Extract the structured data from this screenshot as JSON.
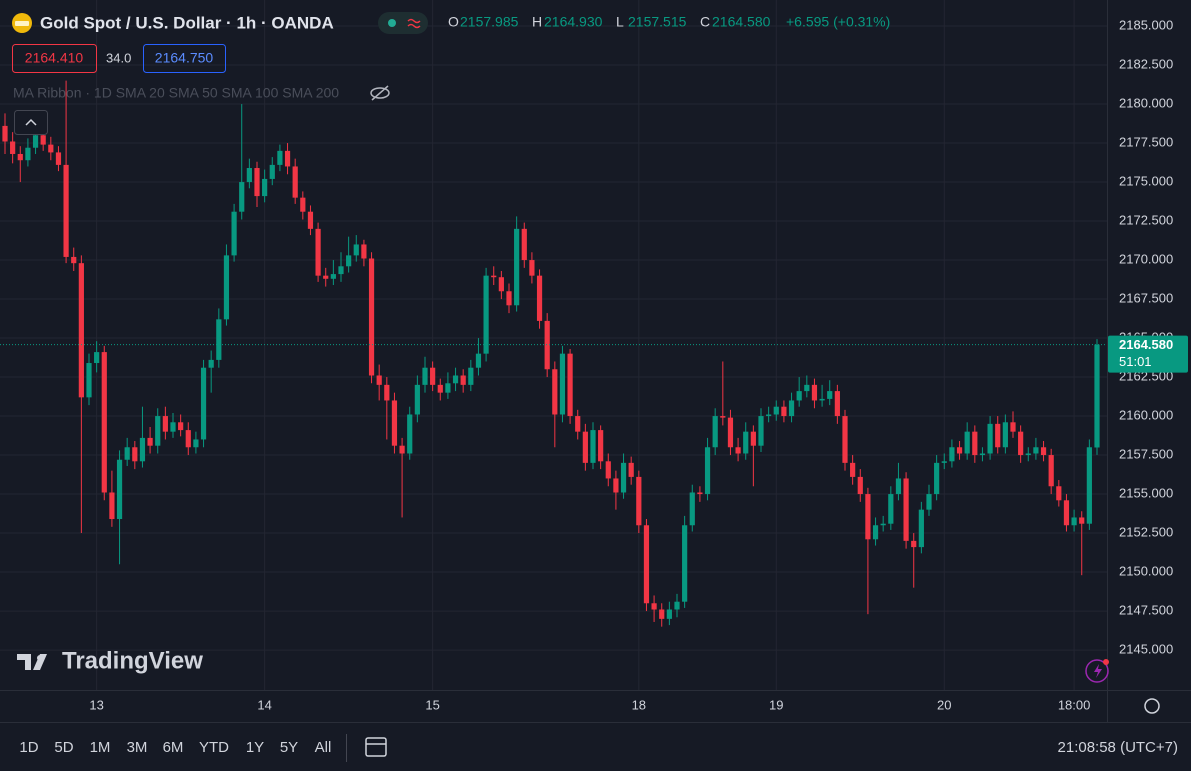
{
  "header": {
    "symbol": "Gold Spot / U.S. Dollar · 1h · OANDA",
    "ohlc_labels": [
      "O",
      "H",
      "L",
      "C"
    ],
    "ohlc_values": [
      "2157.985",
      "2164.930",
      "2157.515",
      "2164.580"
    ],
    "change": "+6.595 (+0.31%)",
    "bid": "2164.410",
    "spread": "34.0",
    "ask": "2164.750",
    "indicator": "MA Ribbon · 1D SMA 20 SMA 50 SMA 100 SMA 200"
  },
  "chart_data": {
    "type": "candlestick",
    "up_color": "#089981",
    "down_color": "#f23645",
    "grid": true,
    "ylim": [
      2142.44,
      2186.67
    ],
    "yticks": [
      {
        "value": 2145,
        "label": "2145.000"
      },
      {
        "value": 2147.5,
        "label": "2147.500"
      },
      {
        "value": 2150,
        "label": "2150.000"
      },
      {
        "value": 2152.5,
        "label": "2152.500"
      },
      {
        "value": 2155,
        "label": "2155.000"
      },
      {
        "value": 2157.5,
        "label": "2157.500"
      },
      {
        "value": 2160,
        "label": "2160.000"
      },
      {
        "value": 2162.5,
        "label": "2162.500"
      },
      {
        "value": 2165,
        "label": "2165.000"
      },
      {
        "value": 2167.5,
        "label": "2167.500"
      },
      {
        "value": 2170,
        "label": "2170.000"
      },
      {
        "value": 2172.5,
        "label": "2172.500"
      },
      {
        "value": 2175,
        "label": "2175.000"
      },
      {
        "value": 2177.5,
        "label": "2177.500"
      },
      {
        "value": 2180,
        "label": "2180.000"
      },
      {
        "value": 2182.5,
        "label": "2182.500"
      },
      {
        "value": 2185,
        "label": "2185.000"
      }
    ],
    "categories": [
      null,
      null,
      null,
      null,
      null,
      null,
      null,
      null,
      null,
      null,
      null,
      null,
      "13",
      null,
      null,
      null,
      null,
      null,
      null,
      null,
      null,
      null,
      null,
      null,
      null,
      null,
      null,
      null,
      null,
      null,
      null,
      null,
      null,
      null,
      "14",
      null,
      null,
      null,
      null,
      null,
      null,
      null,
      null,
      null,
      null,
      null,
      null,
      null,
      null,
      null,
      null,
      null,
      null,
      null,
      null,
      null,
      "15",
      null,
      null,
      null,
      null,
      null,
      null,
      null,
      null,
      null,
      null,
      null,
      null,
      null,
      null,
      null,
      null,
      null,
      null,
      null,
      null,
      null,
      null,
      null,
      null,
      null,
      null,
      "18",
      null,
      null,
      null,
      null,
      null,
      null,
      null,
      null,
      null,
      null,
      null,
      null,
      null,
      null,
      null,
      null,
      null,
      "19",
      null,
      null,
      null,
      null,
      null,
      null,
      null,
      null,
      null,
      null,
      null,
      null,
      null,
      null,
      null,
      null,
      null,
      null,
      null,
      null,
      null,
      "20",
      null,
      null,
      null,
      null,
      null,
      null,
      null,
      null,
      null,
      null,
      null,
      null,
      null,
      null,
      null,
      null,
      "18:00",
      null,
      null,
      null
    ],
    "open": [
      2178.6,
      2177.6,
      2176.8,
      2176.4,
      2177.2,
      2178.0,
      2177.4,
      2176.9,
      2176.1,
      2170.2,
      2169.8,
      2161.2,
      2163.4,
      2164.1,
      2155.1,
      2153.4,
      2157.2,
      2158.0,
      2157.1,
      2158.6,
      2158.1,
      2160.0,
      2159.0,
      2159.6,
      2159.1,
      2158.0,
      2158.5,
      2163.1,
      2163.6,
      2166.2,
      2170.3,
      2173.1,
      2175.0,
      2175.9,
      2174.1,
      2175.2,
      2176.1,
      2177.0,
      2176.0,
      2174.0,
      2173.1,
      2172.0,
      2169.0,
      2168.8,
      2169.1,
      2169.6,
      2170.3,
      2171.0,
      2170.1,
      2162.6,
      2162.0,
      2161.0,
      2158.1,
      2157.6,
      2160.1,
      2162.0,
      2163.1,
      2162.0,
      2161.5,
      2162.1,
      2162.6,
      2162.0,
      2163.1,
      2164.0,
      2169.0,
      2168.9,
      2168.0,
      2167.1,
      2172.0,
      2170.0,
      2169.0,
      2166.1,
      2163.0,
      2160.1,
      2164.0,
      2160.0,
      2159.0,
      2157.0,
      2159.1,
      2157.1,
      2156.0,
      2155.1,
      2157.0,
      2156.1,
      2153.0,
      2148.0,
      2147.6,
      2147.0,
      2147.6,
      2148.1,
      2153.0,
      2155.1,
      2155.0,
      2158.0,
      2160.0,
      2159.9,
      2158.0,
      2157.6,
      2159.0,
      2158.1,
      2160.0,
      2160.1,
      2160.6,
      2160.0,
      2161.0,
      2161.6,
      2162.0,
      2161.0,
      2161.1,
      2161.6,
      2160.0,
      2157.0,
      2156.1,
      2155.0,
      2152.1,
      2153.0,
      2153.1,
      2155.0,
      2156.0,
      2152.0,
      2151.6,
      2154.0,
      2155.0,
      2157.0,
      2157.1,
      2158.0,
      2157.6,
      2159.0,
      2157.5,
      2157.6,
      2159.5,
      2158.0,
      2159.6,
      2159.0,
      2157.5,
      2157.6,
      2158.0,
      2157.5,
      2155.5,
      2154.6,
      2153.0,
      2153.5,
      2153.1,
      2157.985
    ],
    "high": [
      2179.4,
      2178.2,
      2177.3,
      2177.8,
      2178.6,
      2178.4,
      2177.9,
      2177.3,
      2181.5,
      2170.8,
      2170.3,
      2164.0,
      2164.8,
      2164.5,
      2156.5,
      2157.8,
      2158.6,
      2158.4,
      2160.6,
      2159.3,
      2160.5,
      2160.6,
      2160.2,
      2160.1,
      2159.6,
      2159.0,
      2163.6,
      2164.2,
      2166.9,
      2171.0,
      2173.6,
      2180.0,
      2176.5,
      2176.3,
      2175.8,
      2176.6,
      2177.4,
      2177.5,
      2176.5,
      2174.4,
      2173.5,
      2172.4,
      2169.5,
      2170.0,
      2170.5,
      2171.5,
      2171.6,
      2171.3,
      2170.5,
      2163.3,
      2162.5,
      2161.5,
      2158.6,
      2160.6,
      2162.6,
      2163.8,
      2163.5,
      2162.4,
      2162.8,
      2163.1,
      2163.0,
      2163.6,
      2165.0,
      2169.5,
      2169.6,
      2169.3,
      2168.5,
      2172.8,
      2172.4,
      2170.5,
      2169.4,
      2166.6,
      2163.5,
      2164.5,
      2164.3,
      2160.4,
      2159.5,
      2159.6,
      2159.4,
      2157.6,
      2156.5,
      2157.6,
      2157.4,
      2156.5,
      2153.4,
      2148.5,
      2148.0,
      2148.1,
      2148.6,
      2153.6,
      2155.6,
      2155.5,
      2158.6,
      2160.5,
      2163.5,
      2160.4,
      2158.6,
      2159.6,
      2159.4,
      2160.5,
      2160.6,
      2161.0,
      2161.0,
      2161.5,
      2162.5,
      2162.6,
      2162.4,
      2162.0,
      2162.3,
      2162.0,
      2160.4,
      2157.5,
      2156.6,
      2155.4,
      2153.5,
      2153.6,
      2155.5,
      2157.0,
      2156.4,
      2152.5,
      2154.5,
      2155.6,
      2157.5,
      2157.6,
      2158.5,
      2158.4,
      2159.6,
      2159.4,
      2158.0,
      2160.0,
      2160.0,
      2160.1,
      2160.3,
      2159.4,
      2158.0,
      2158.6,
      2158.4,
      2157.9,
      2155.9,
      2155.0,
      2154.0,
      2153.9,
      2158.5,
      2164.93
    ],
    "low": [
      2176.8,
      2176.2,
      2175.0,
      2176.0,
      2176.8,
      2177.0,
      2176.4,
      2175.7,
      2169.8,
      2169.3,
      2152.5,
      2160.7,
      2162.8,
      2154.6,
      2152.9,
      2150.5,
      2156.8,
      2156.6,
      2156.7,
      2157.6,
      2157.6,
      2158.5,
      2158.6,
      2158.7,
      2157.5,
      2157.6,
      2158.0,
      2161.5,
      2163.1,
      2165.8,
      2169.9,
      2172.6,
      2174.6,
      2173.4,
      2173.7,
      2174.8,
      2175.7,
      2175.5,
      2173.6,
      2172.6,
      2171.6,
      2168.6,
      2168.3,
      2168.4,
      2168.6,
      2169.2,
      2169.9,
      2169.6,
      2162.1,
      2161.0,
      2158.5,
      2157.6,
      2153.5,
      2157.2,
      2159.6,
      2161.5,
      2161.6,
      2161.0,
      2161.1,
      2161.6,
      2161.5,
      2161.6,
      2162.6,
      2163.5,
      2168.4,
      2167.5,
      2166.6,
      2166.7,
      2169.5,
      2168.5,
      2165.6,
      2162.5,
      2158.0,
      2159.6,
      2159.5,
      2158.5,
      2156.5,
      2156.6,
      2156.6,
      2155.5,
      2154.0,
      2154.7,
      2155.6,
      2152.5,
      2147.5,
      2146.8,
      2146.5,
      2146.6,
      2147.1,
      2147.7,
      2152.6,
      2154.5,
      2154.6,
      2157.5,
      2159.4,
      2157.5,
      2157.1,
      2157.2,
      2155.5,
      2157.7,
      2159.6,
      2159.7,
      2159.6,
      2159.6,
      2160.6,
      2161.2,
      2160.5,
      2160.6,
      2160.7,
      2159.5,
      2156.5,
      2155.6,
      2154.5,
      2147.3,
      2151.7,
      2152.6,
      2152.7,
      2154.6,
      2151.5,
      2149.0,
      2151.2,
      2153.6,
      2154.6,
      2156.6,
      2156.7,
      2157.2,
      2157.2,
      2157.0,
      2157.1,
      2157.2,
      2157.6,
      2157.6,
      2158.6,
      2157.0,
      2157.1,
      2157.2,
      2157.1,
      2155.0,
      2154.2,
      2152.6,
      2152.6,
      2149.8,
      2152.7,
      2157.515
    ],
    "close": [
      2177.6,
      2176.8,
      2176.4,
      2177.2,
      2178.0,
      2177.4,
      2176.9,
      2176.1,
      2170.2,
      2169.8,
      2161.2,
      2163.4,
      2164.1,
      2155.1,
      2153.4,
      2157.2,
      2158.0,
      2157.1,
      2158.6,
      2158.1,
      2160.0,
      2159.0,
      2159.6,
      2159.1,
      2158.0,
      2158.5,
      2163.1,
      2163.6,
      2166.2,
      2170.3,
      2173.1,
      2175.0,
      2175.9,
      2174.1,
      2175.2,
      2176.1,
      2177.0,
      2176.0,
      2174.0,
      2173.1,
      2172.0,
      2169.0,
      2168.8,
      2169.1,
      2169.6,
      2170.3,
      2171.0,
      2170.1,
      2162.6,
      2162.0,
      2161.0,
      2158.1,
      2157.6,
      2160.1,
      2162.0,
      2163.1,
      2162.0,
      2161.5,
      2162.1,
      2162.6,
      2162.0,
      2163.1,
      2164.0,
      2169.0,
      2168.9,
      2168.0,
      2167.1,
      2172.0,
      2170.0,
      2169.0,
      2166.1,
      2163.0,
      2160.1,
      2164.0,
      2160.0,
      2159.0,
      2157.0,
      2159.1,
      2157.1,
      2156.0,
      2155.1,
      2157.0,
      2156.1,
      2153.0,
      2148.0,
      2147.6,
      2147.0,
      2147.6,
      2148.1,
      2153.0,
      2155.1,
      2155.0,
      2158.0,
      2160.0,
      2159.9,
      2158.0,
      2157.6,
      2159.0,
      2158.1,
      2160.0,
      2160.1,
      2160.6,
      2160.0,
      2161.0,
      2161.6,
      2162.0,
      2161.0,
      2161.1,
      2161.6,
      2160.0,
      2157.0,
      2156.1,
      2155.0,
      2152.1,
      2153.0,
      2153.1,
      2155.0,
      2156.0,
      2152.0,
      2151.6,
      2154.0,
      2155.0,
      2157.0,
      2157.1,
      2158.0,
      2157.6,
      2159.0,
      2157.5,
      2157.6,
      2159.5,
      2158.0,
      2159.6,
      2159.0,
      2157.5,
      2157.6,
      2158.0,
      2157.5,
      2155.5,
      2154.6,
      2153.0,
      2153.5,
      2153.1,
      2158.0,
      2164.58
    ],
    "last_price_label": "2164.580",
    "countdown": "51:01"
  },
  "watermark": "TradingView",
  "toolbar": {
    "ranges": [
      "1D",
      "5D",
      "1M",
      "3M",
      "6M",
      "YTD",
      "1Y",
      "5Y",
      "All"
    ],
    "clock": "21:08:58 (UTC+7)"
  }
}
